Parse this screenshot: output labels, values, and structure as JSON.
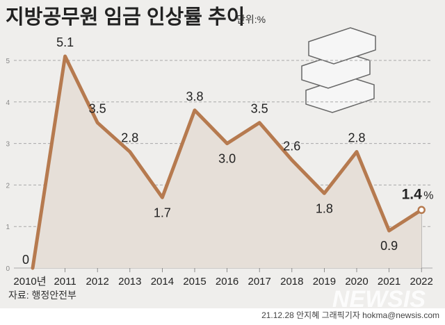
{
  "chart_data": {
    "type": "line",
    "title": "지방공무원 임금 인상률 추이",
    "unit_label": "단위:%",
    "categories": [
      "2010년",
      "2011",
      "2012",
      "2013",
      "2014",
      "2015",
      "2016",
      "2017",
      "2018",
      "2019",
      "2020",
      "2021",
      "2022"
    ],
    "values": [
      0,
      5.1,
      3.5,
      2.8,
      1.7,
      3.8,
      3.0,
      3.5,
      2.6,
      1.8,
      2.8,
      0.9,
      1.4
    ],
    "data_labels": [
      "0",
      "5.1",
      "3.5",
      "2.8",
      "1.7",
      "3.8",
      "3.0",
      "3.5",
      "2.6",
      "1.8",
      "2.8",
      "0.9",
      "1.4"
    ],
    "last_label_unit": "%",
    "ylim": [
      0,
      5
    ],
    "yticks": [
      "0",
      "1",
      "2",
      "3",
      "4",
      "5"
    ],
    "grid": true,
    "colors": {
      "line": "#b67a4f",
      "area": "#e6dfd8",
      "background": "#efeeec",
      "grid": "#a8a8a8"
    }
  },
  "source": "자료: 행정안전부",
  "credit": "21.12.28 안지혜 그래픽기자 hokma@newsis.com",
  "watermark": "NEWSIS"
}
